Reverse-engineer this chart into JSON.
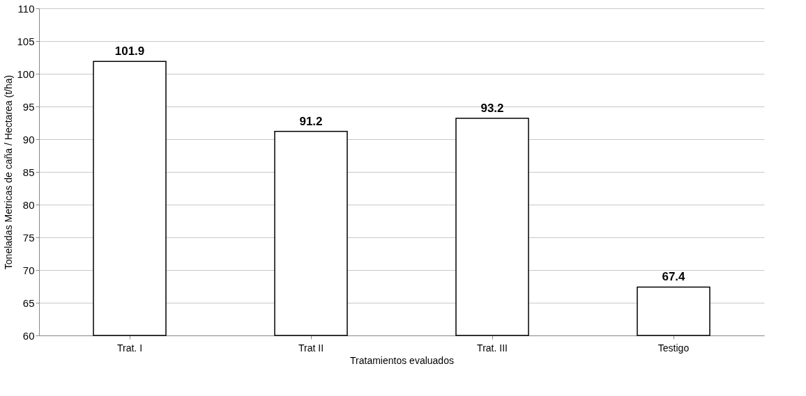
{
  "chart_data": {
    "type": "bar",
    "xlabel": "Tratamientos evaluados",
    "ylabel": "Toneladas Metricas de caña / Hectarea (t/ha)",
    "categories": [
      "Trat. I",
      "Trat II",
      "Trat. III",
      "Testigo"
    ],
    "values": [
      101.9,
      91.2,
      93.2,
      67.4
    ],
    "colors": [
      "#ffffff",
      "#ffffff",
      "#ffffff",
      "#ffffff"
    ],
    "ylim": [
      60,
      110
    ],
    "yticks": [
      60,
      65,
      70,
      75,
      80,
      85,
      90,
      95,
      100,
      105,
      110
    ],
    "grid": "y",
    "data_labels": true
  }
}
